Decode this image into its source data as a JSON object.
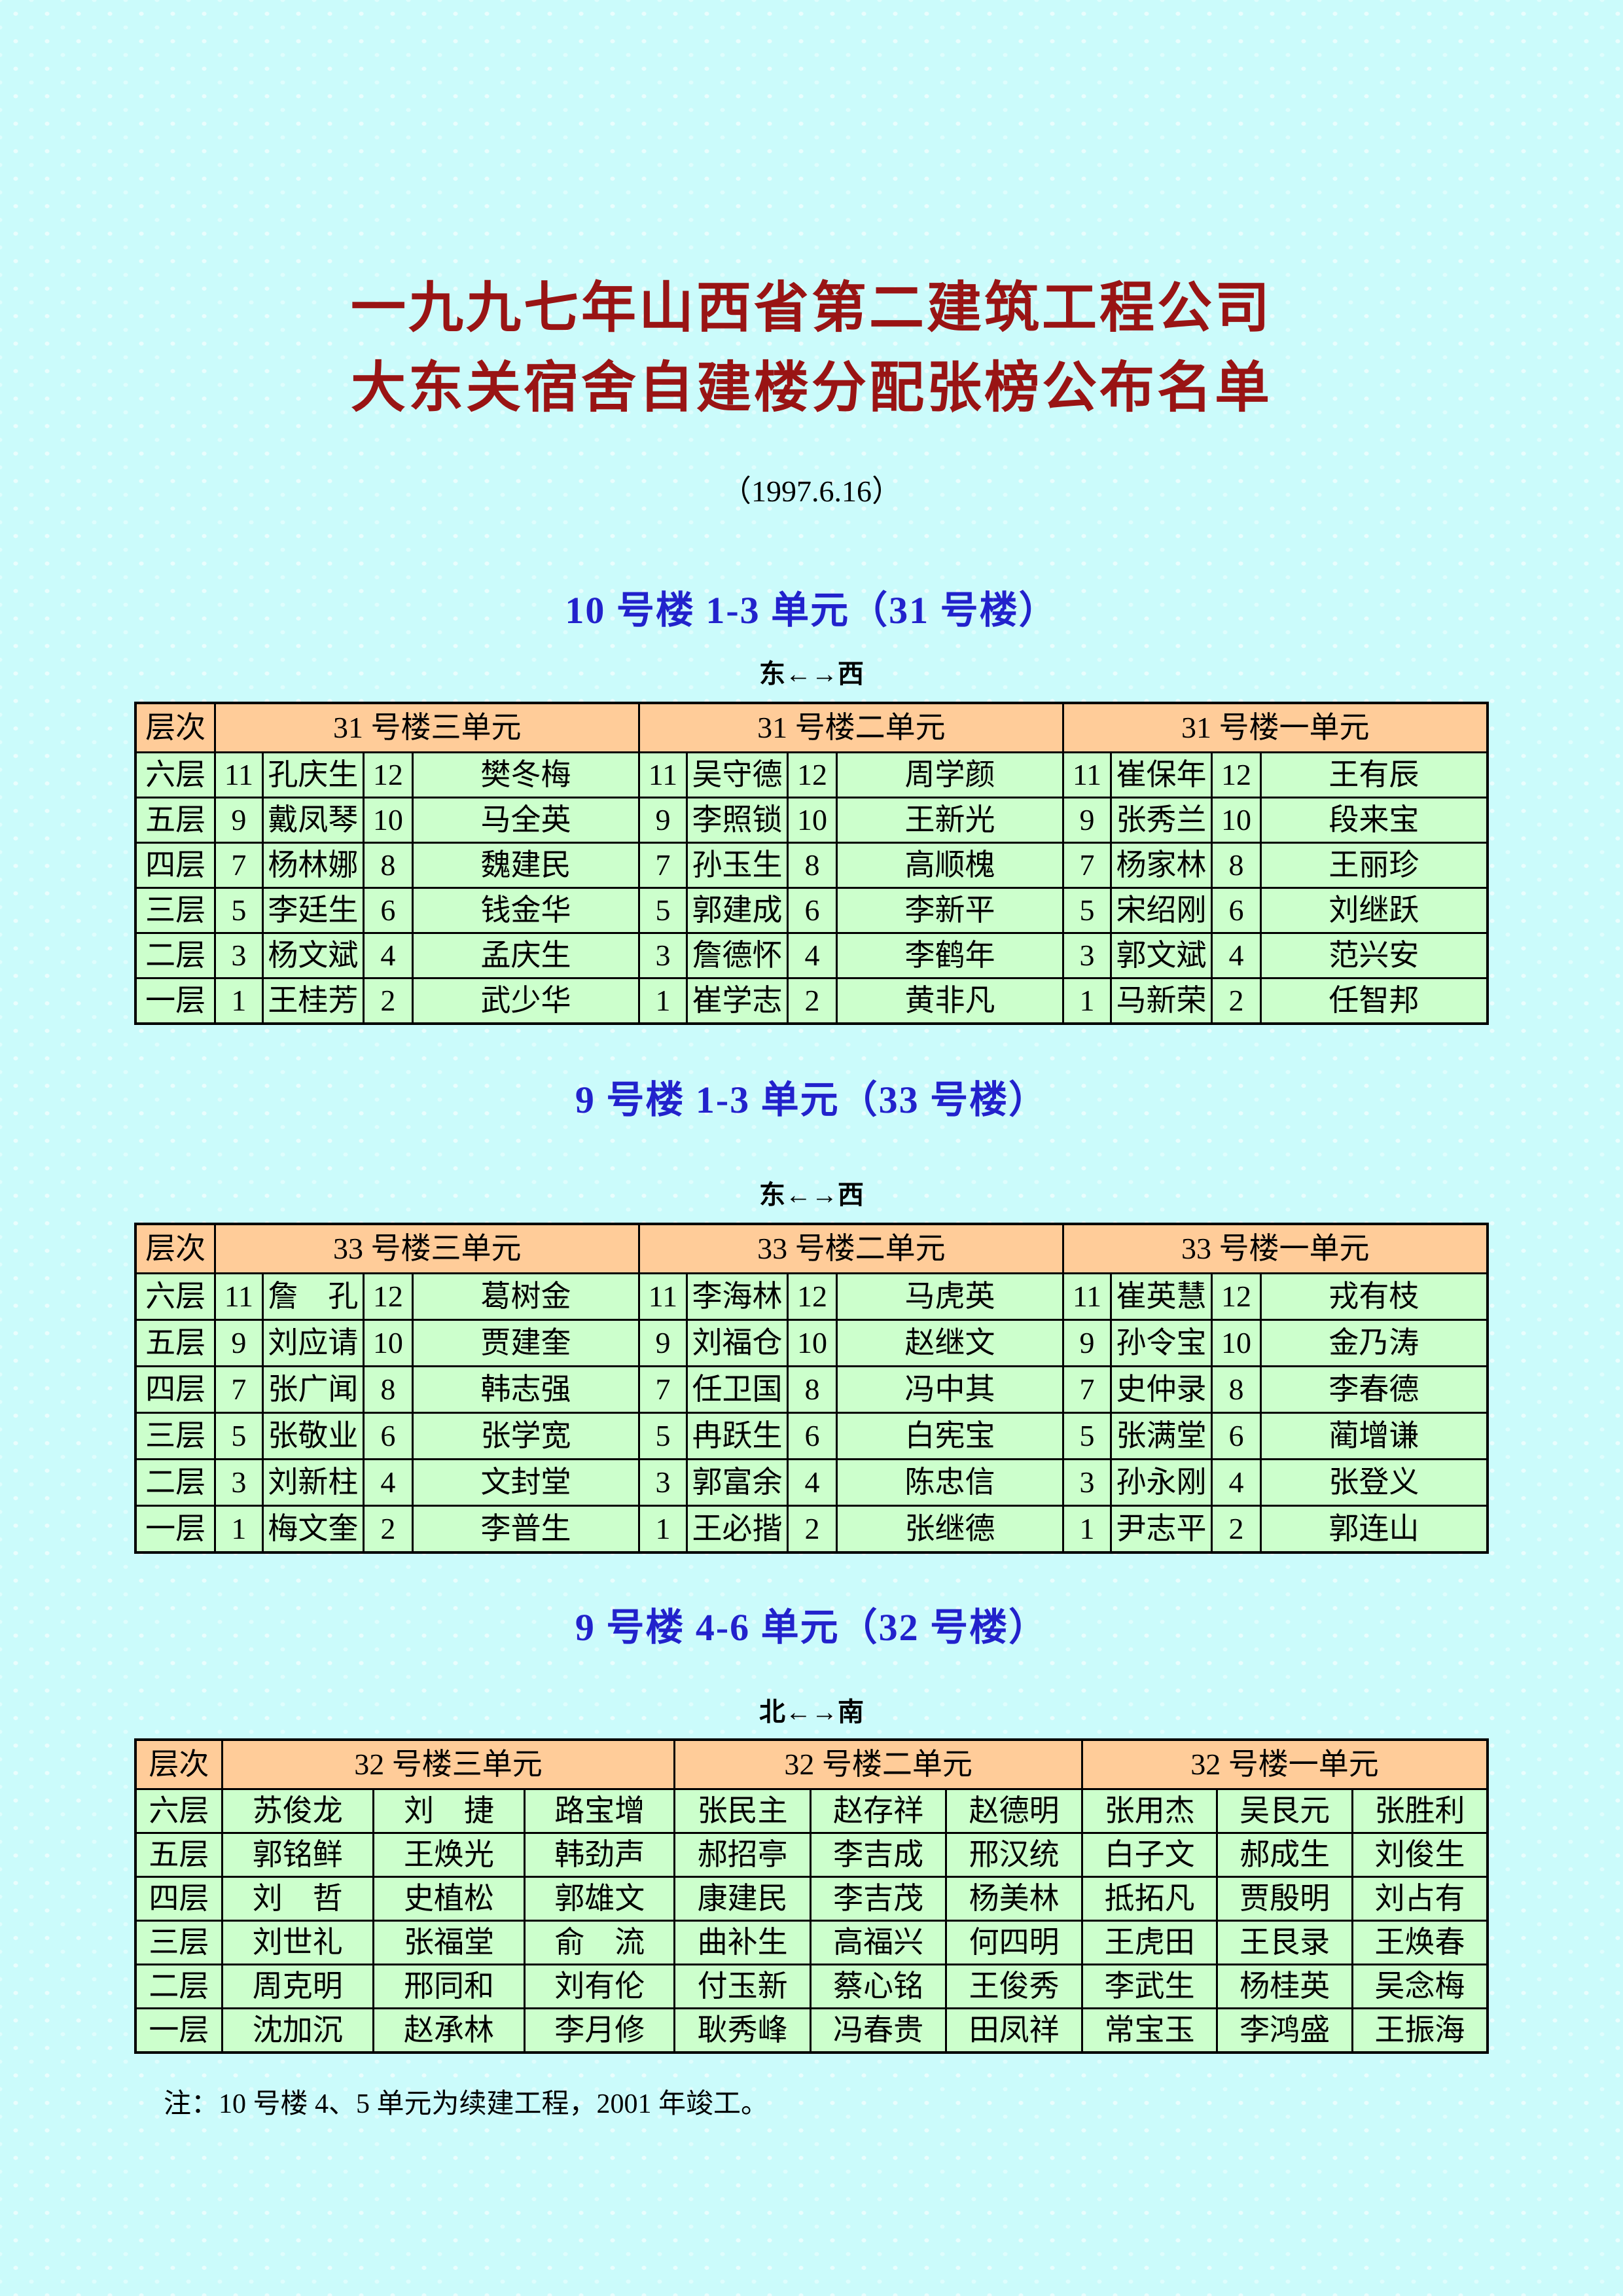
{
  "page": {
    "title_line1": "一九九七年山西省第二建筑工程公司",
    "title_line2": "大东关宿舍自建楼分配张榜公布名单",
    "date": "（1997.6.16）",
    "note": "注：10 号楼 4、5 单元为续建工程，2001 年竣工。"
  },
  "colors": {
    "background": "#CBFBFB",
    "title_color": "#991414",
    "heading_color": "#2222CC",
    "table_header_bg": "#FFCC99",
    "table_cell_bg": "#CCFFCC",
    "border_color": "#000000"
  },
  "sections": [
    {
      "heading": "10 号楼 1-3 单元（31 号楼）",
      "direction": "东←→西",
      "table": {
        "type": "numbered",
        "floor_header": "层次",
        "unit_headers": [
          "31 号楼三单元",
          "31 号楼二单元",
          "31 号楼一单元"
        ],
        "rows": [
          {
            "floor": "六层",
            "units": [
              [
                "11",
                "孔庆生",
                "12",
                "樊冬梅"
              ],
              [
                "11",
                "吴守德",
                "12",
                "周学颜"
              ],
              [
                "11",
                "崔保年",
                "12",
                "王有辰"
              ]
            ]
          },
          {
            "floor": "五层",
            "units": [
              [
                "9",
                "戴凤琴",
                "10",
                "马全英"
              ],
              [
                "9",
                "李照锁",
                "10",
                "王新光"
              ],
              [
                "9",
                "张秀兰",
                "10",
                "段来宝"
              ]
            ]
          },
          {
            "floor": "四层",
            "units": [
              [
                "7",
                "杨林娜",
                "8",
                "魏建民"
              ],
              [
                "7",
                "孙玉生",
                "8",
                "高顺槐"
              ],
              [
                "7",
                "杨家林",
                "8",
                "王丽珍"
              ]
            ]
          },
          {
            "floor": "三层",
            "units": [
              [
                "5",
                "李廷生",
                "6",
                "钱金华"
              ],
              [
                "5",
                "郭建成",
                "6",
                "李新平"
              ],
              [
                "5",
                "宋绍刚",
                "6",
                "刘继跃"
              ]
            ]
          },
          {
            "floor": "二层",
            "units": [
              [
                "3",
                "杨文斌",
                "4",
                "孟庆生"
              ],
              [
                "3",
                "詹德怀",
                "4",
                "李鹤年"
              ],
              [
                "3",
                "郭文斌",
                "4",
                "范兴安"
              ]
            ]
          },
          {
            "floor": "一层",
            "units": [
              [
                "1",
                "王桂芳",
                "2",
                "武少华"
              ],
              [
                "1",
                "崔学志",
                "2",
                "黄非凡"
              ],
              [
                "1",
                "马新荣",
                "2",
                "任智邦"
              ]
            ]
          }
        ]
      }
    },
    {
      "heading": "9 号楼 1-3 单元（33 号楼）",
      "direction": "东←→西",
      "table": {
        "type": "numbered",
        "floor_header": "层次",
        "unit_headers": [
          "33 号楼三单元",
          "33 号楼二单元",
          "33 号楼一单元"
        ],
        "rows": [
          {
            "floor": "六层",
            "units": [
              [
                "11",
                "詹　孔",
                "12",
                "葛树金"
              ],
              [
                "11",
                "李海林",
                "12",
                "马虎英"
              ],
              [
                "11",
                "崔英慧",
                "12",
                "戎有枝"
              ]
            ]
          },
          {
            "floor": "五层",
            "units": [
              [
                "9",
                "刘应请",
                "10",
                "贾建奎"
              ],
              [
                "9",
                "刘福仓",
                "10",
                "赵继文"
              ],
              [
                "9",
                "孙令宝",
                "10",
                "金乃涛"
              ]
            ]
          },
          {
            "floor": "四层",
            "units": [
              [
                "7",
                "张广闻",
                "8",
                "韩志强"
              ],
              [
                "7",
                "任卫国",
                "8",
                "冯中其"
              ],
              [
                "7",
                "史仲录",
                "8",
                "李春德"
              ]
            ]
          },
          {
            "floor": "三层",
            "units": [
              [
                "5",
                "张敬业",
                "6",
                "张学宽"
              ],
              [
                "5",
                "冉跃生",
                "6",
                "白宪宝"
              ],
              [
                "5",
                "张满堂",
                "6",
                "蔺增谦"
              ]
            ]
          },
          {
            "floor": "二层",
            "units": [
              [
                "3",
                "刘新柱",
                "4",
                "文封堂"
              ],
              [
                "3",
                "郭富余",
                "4",
                "陈忠信"
              ],
              [
                "3",
                "孙永刚",
                "4",
                "张登义"
              ]
            ]
          },
          {
            "floor": "一层",
            "units": [
              [
                "1",
                "梅文奎",
                "2",
                "李普生"
              ],
              [
                "1",
                "王必揩",
                "2",
                "张继德"
              ],
              [
                "1",
                "尹志平",
                "2",
                "郭连山"
              ]
            ]
          }
        ]
      }
    },
    {
      "heading": "9 号楼 4-6 单元（32 号楼）",
      "direction": "北←→南",
      "table": {
        "type": "names",
        "floor_header": "层次",
        "unit_headers": [
          "32 号楼三单元",
          "32 号楼二单元",
          "32 号楼一单元"
        ],
        "rows": [
          {
            "floor": "六层",
            "units": [
              [
                "苏俊龙",
                "刘　捷",
                "路宝增"
              ],
              [
                "张民主",
                "赵存祥",
                "赵德明"
              ],
              [
                "张用杰",
                "吴艮元",
                "张胜利"
              ]
            ]
          },
          {
            "floor": "五层",
            "units": [
              [
                "郭铭鲜",
                "王焕光",
                "韩劲声"
              ],
              [
                "郝招亭",
                "李吉成",
                "邢汉统"
              ],
              [
                "白子文",
                "郝成生",
                "刘俊生"
              ]
            ]
          },
          {
            "floor": "四层",
            "units": [
              [
                "刘　哲",
                "史植松",
                "郭雄文"
              ],
              [
                "康建民",
                "李吉茂",
                "杨美林"
              ],
              [
                "抵拓凡",
                "贾殷明",
                "刘占有"
              ]
            ]
          },
          {
            "floor": "三层",
            "units": [
              [
                "刘世礼",
                "张福堂",
                "俞　流"
              ],
              [
                "曲补生",
                "高福兴",
                "何四明"
              ],
              [
                "王虎田",
                "王艮录",
                "王焕春"
              ]
            ]
          },
          {
            "floor": "二层",
            "units": [
              [
                "周克明",
                "邢同和",
                "刘有伦"
              ],
              [
                "付玉新",
                "蔡心铭",
                "王俊秀"
              ],
              [
                "李武生",
                "杨桂英",
                "吴念梅"
              ]
            ]
          },
          {
            "floor": "一层",
            "units": [
              [
                "沈加沉",
                "赵承林",
                "李月修"
              ],
              [
                "耿秀峰",
                "冯春贵",
                "田凤祥"
              ],
              [
                "常宝玉",
                "李鸿盛",
                "王振海"
              ]
            ]
          }
        ]
      }
    }
  ]
}
